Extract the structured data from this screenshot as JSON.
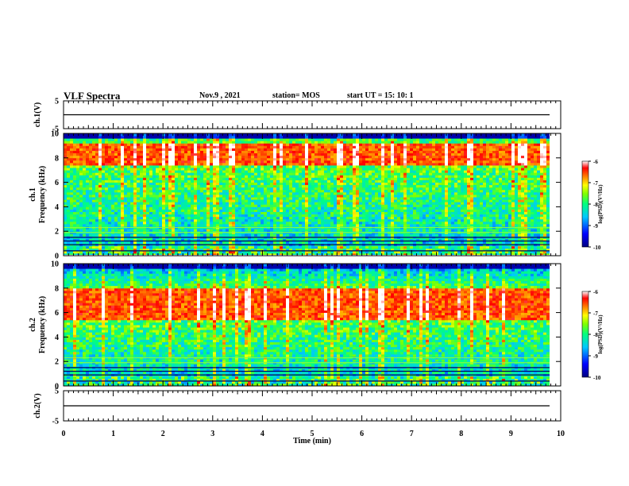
{
  "header": {
    "title": "VLF Spectra",
    "date": "Nov.9 , 2021",
    "station": "station= MOS",
    "start_ut": "start  UT  =  15: 10: 1"
  },
  "chart_data": [
    {
      "type": "line",
      "panel": "ch1-waveform",
      "ylabel": "ch.1(V)",
      "ylim": [
        -5,
        5
      ],
      "yticks": [
        "5",
        "-5"
      ],
      "x": [
        0,
        10
      ],
      "values": [
        0,
        0
      ]
    },
    {
      "type": "heatmap",
      "panel": "ch1-spectrogram",
      "ylabel": "ch.1\nFrequency (kHz)",
      "ylim": [
        0,
        10
      ],
      "yticks": [
        "0",
        "2",
        "4",
        "6",
        "8",
        "10"
      ],
      "xlim": [
        0,
        10
      ],
      "colorbar": {
        "label": "log(PSD)(V²/Hz)",
        "range": [
          -10,
          -6
        ],
        "ticks": [
          "-6",
          "-7",
          "-8",
          "-9",
          "-10"
        ]
      },
      "dominant_band_khz": [
        7.5,
        9.2
      ]
    },
    {
      "type": "heatmap",
      "panel": "ch2-spectrogram",
      "ylabel": "ch.2\nFrequency (kHz)",
      "ylim": [
        0,
        10
      ],
      "yticks": [
        "0",
        "2",
        "4",
        "6",
        "8",
        "10"
      ],
      "xlim": [
        0,
        10
      ],
      "colorbar": {
        "label": "log(PSD)(V²/Hz)",
        "range": [
          -10,
          -6
        ],
        "ticks": [
          "-6",
          "-7",
          "-8",
          "-9",
          "-10"
        ]
      },
      "dominant_band_khz": [
        5.5,
        8.0
      ]
    },
    {
      "type": "line",
      "panel": "ch2-waveform",
      "ylabel": "ch.2(V)",
      "ylim": [
        -5,
        5
      ],
      "yticks": [
        "5",
        "-5"
      ],
      "x": [
        0,
        10
      ],
      "values": [
        0,
        0
      ]
    }
  ],
  "x_axis": {
    "label": "Time (min)",
    "ticks": [
      "0",
      "1",
      "2",
      "3",
      "4",
      "5",
      "6",
      "7",
      "8",
      "9",
      "10"
    ],
    "range": [
      0,
      10
    ]
  },
  "colors": {
    "colormap": [
      "#00007f",
      "#0000ff",
      "#00bfff",
      "#00ff7f",
      "#7fff00",
      "#ffff00",
      "#ff7f00",
      "#ff0000",
      "#ffffff"
    ]
  }
}
